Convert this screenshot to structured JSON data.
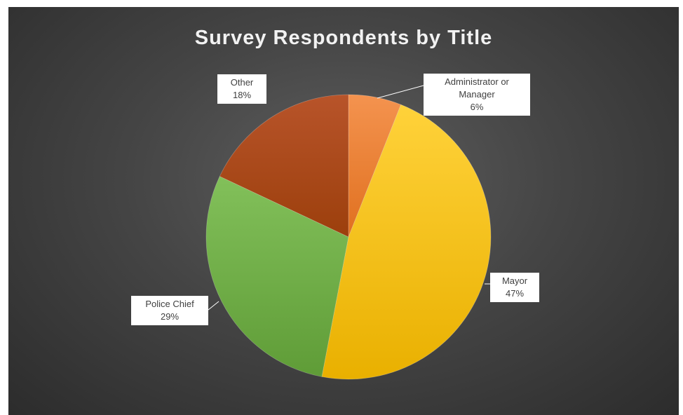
{
  "chart_data": {
    "type": "pie",
    "title": "Survey Respondents by Title",
    "slices": [
      {
        "label": "Administrator or Manager",
        "value": 6,
        "display": "6%",
        "color": "#ED7D31"
      },
      {
        "label": "Mayor",
        "value": 47,
        "display": "47%",
        "color": "#FFC000"
      },
      {
        "label": "Police Chief",
        "value": 29,
        "display": "29%",
        "color": "#70AD47"
      },
      {
        "label": "Other",
        "value": 18,
        "display": "18%",
        "color": "#B04A14"
      }
    ]
  }
}
